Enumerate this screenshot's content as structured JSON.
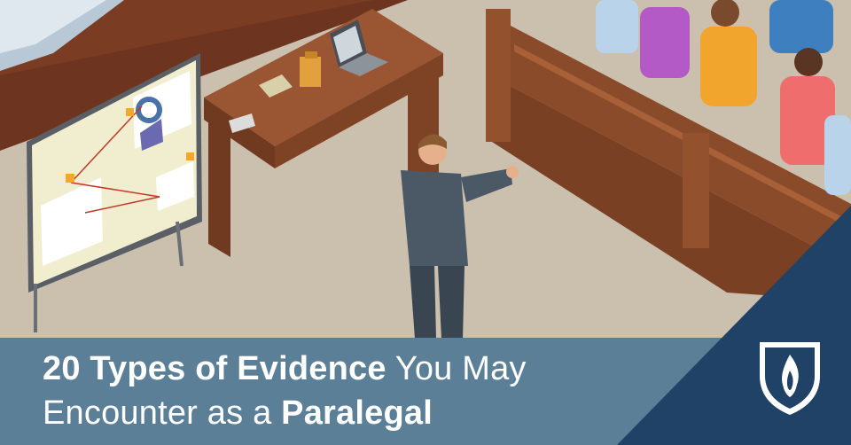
{
  "banner": {
    "line1_bold": "20 Types of Evidence",
    "line1_regular": " You May",
    "line2_regular": "Encounter as a ",
    "line2_bold": "Paralegal"
  },
  "logo": {
    "icon": "flame-shield-icon"
  },
  "colors": {
    "banner": "#5b7f96",
    "corner": "#1f4266",
    "floor": "#cbbfae",
    "wood": "#8a4b2a",
    "wall": "#7a3c22"
  }
}
